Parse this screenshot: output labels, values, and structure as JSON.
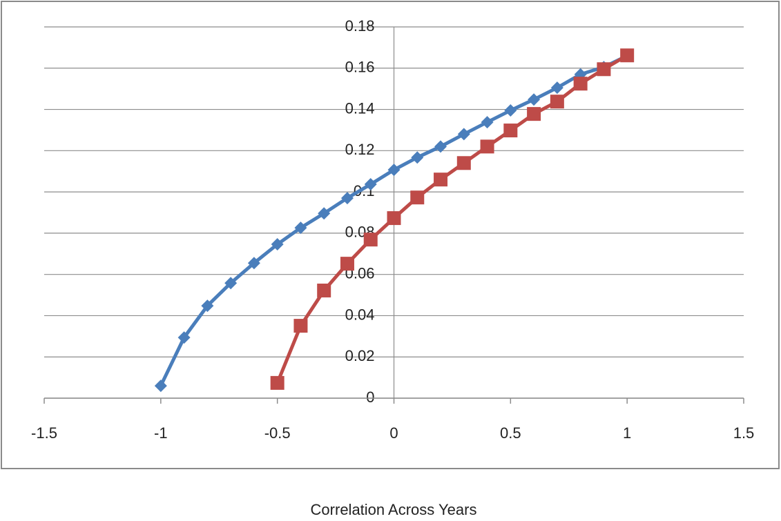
{
  "chart_data": {
    "type": "line",
    "x_title": "Correlation Across Years",
    "series": [
      {
        "color": "#4a7ebb",
        "marker": "diamond",
        "x": [
          -1,
          -0.9,
          -0.8,
          -0.7,
          -0.6,
          -0.5,
          -0.4,
          -0.3,
          -0.2,
          -0.1,
          0,
          0.1,
          0.2,
          0.3,
          0.4,
          0.5,
          0.6,
          0.7,
          0.8,
          0.9,
          1
        ],
        "values": [
          0.006,
          0.0294,
          0.0448,
          0.0558,
          0.0655,
          0.0746,
          0.0826,
          0.0896,
          0.097,
          0.1037,
          0.1107,
          0.1167,
          0.122,
          0.128,
          0.1338,
          0.1395,
          0.1448,
          0.1505,
          0.157,
          0.1605,
          0.166
        ]
      },
      {
        "color": "#be4b48",
        "marker": "square",
        "x": [
          -0.5,
          -0.4,
          -0.3,
          -0.2,
          -0.1,
          0,
          0.1,
          0.2,
          0.3,
          0.4,
          0.5,
          0.6,
          0.7,
          0.8,
          0.9,
          1
        ],
        "values": [
          0.0074,
          0.0351,
          0.0522,
          0.0652,
          0.0769,
          0.0873,
          0.0973,
          0.106,
          0.114,
          0.122,
          0.1298,
          0.1378,
          0.1438,
          0.1525,
          0.1595,
          0.1662
        ]
      }
    ],
    "xlim": [
      -1.5,
      1.5
    ],
    "xticks": [
      -1.5,
      -1,
      -0.5,
      0,
      0.5,
      1,
      1.5
    ],
    "ylim": [
      0,
      0.18
    ],
    "yticks": [
      0,
      0.02,
      0.04,
      0.06,
      0.08,
      0.1,
      0.12,
      0.14,
      0.16,
      0.18
    ],
    "grid": true
  }
}
